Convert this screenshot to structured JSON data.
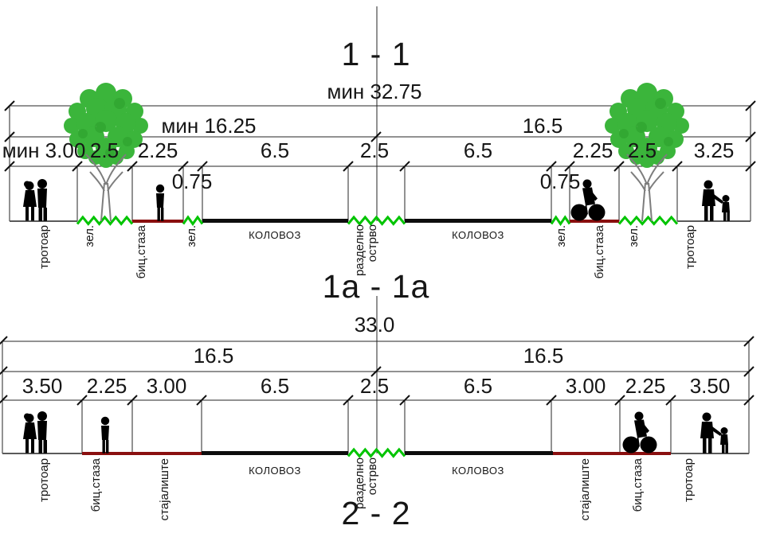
{
  "diagram": {
    "colors": {
      "grass_green": "#00c400",
      "bike_path_red": "#8a0f0f",
      "road_black": "#0d0d0d",
      "tree_green": "#3bb53b"
    },
    "sections": [
      {
        "title": "1 - 1",
        "total": "мин 32.75",
        "left_half": "мин 16.25",
        "right_half": "16.5",
        "dims": [
          "мин 3.00",
          "2.5",
          "2.25",
          "6.5",
          "2.5",
          "6.5",
          "2.25",
          "2.5",
          "3.25"
        ],
        "sub_dims": [
          "0.75",
          "0.75"
        ],
        "zone_labels": [
          "тротоар",
          "зел.",
          "биц.стаза",
          "зел.",
          "КОЛОВОЗ",
          "разделно",
          "острво",
          "КОЛОВОЗ",
          "зел.",
          "биц.стаза",
          "зел.",
          "тротоар"
        ]
      },
      {
        "title": "1a - 1a",
        "total": "33.0",
        "left_half": "16.5",
        "right_half": "16.5",
        "dims": [
          "3.50",
          "2.25",
          "3.00",
          "6.5",
          "2.5",
          "6.5",
          "3.00",
          "2.25",
          "3.50"
        ],
        "zone_labels": [
          "тротоар",
          "биц.стаза",
          "стајалиште",
          "КОЛОВОЗ",
          "разделно",
          "острво",
          "КОЛОВОЗ",
          "стајалиште",
          "биц.стаза",
          "тротоар"
        ]
      }
    ],
    "footer_title": "2 - 2"
  }
}
